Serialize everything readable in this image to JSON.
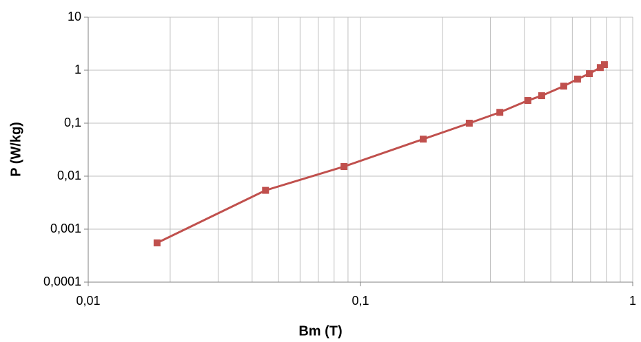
{
  "chart_data": {
    "type": "line",
    "x_label": "Bm (T)",
    "y_label": "P (W/kg)",
    "x": [
      0.0179,
      0.0448,
      0.087,
      0.17,
      0.251,
      0.325,
      0.412,
      0.463,
      0.558,
      0.627,
      0.693,
      0.76,
      0.787
    ],
    "series": [
      {
        "name": "P",
        "color": "#c0504d",
        "values": [
          0.00055,
          0.0054,
          0.0152,
          0.05,
          0.1,
          0.16,
          0.268,
          0.33,
          0.5,
          0.68,
          0.86,
          1.12,
          1.27
        ]
      }
    ],
    "xlog": true,
    "ylog": true,
    "xlim": [
      0.01,
      1
    ],
    "ylim": [
      0.0001,
      10
    ],
    "xticks": [
      {
        "value": 0.01,
        "label": "0,01"
      },
      {
        "value": 0.1,
        "label": "0,1"
      },
      1
    ],
    "xminorticks": [
      0.02,
      0.03,
      0.04,
      0.05,
      0.06,
      0.07,
      0.08,
      0.09,
      0.2,
      0.3,
      0.4,
      0.5,
      0.6,
      0.7,
      0.8,
      0.9
    ],
    "yticks": [
      {
        "value": 0.0001,
        "label": "0,0001"
      },
      {
        "value": 0.001,
        "label": "0,001"
      },
      {
        "value": 0.01,
        "label": "0,01"
      },
      {
        "value": 0.1,
        "label": "0,1"
      },
      1,
      10
    ],
    "grid": true
  }
}
